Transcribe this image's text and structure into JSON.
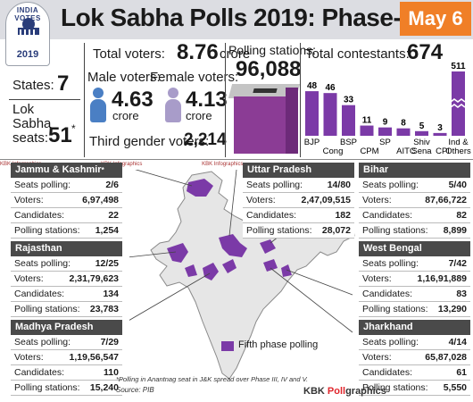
{
  "logo": {
    "top_text": "INDIA VOTES",
    "year": "2019"
  },
  "header": {
    "title": "Lok Sabha Polls 2019: Phase-V",
    "date": "May 6"
  },
  "stats": {
    "states_label": "States:",
    "states_value": "7",
    "seats_label_1": "Lok",
    "seats_label_2": "Sabha",
    "seats_label_3": "seats:",
    "seats_value": "51",
    "seats_note": "*",
    "total_voters_label": "Total voters:",
    "total_voters_value": "8.76",
    "total_voters_unit": "crore",
    "male_label": "Male voters:",
    "male_value": "4.63",
    "male_unit": "crore",
    "female_label": "Female voters:",
    "female_value": "4.13",
    "female_unit": "crore",
    "third_gender_label": "Third gender voters:",
    "third_gender_value": "2,214",
    "polling_stations_label": "Polling stations:",
    "polling_stations_value": "96,088",
    "contestants_label": "Total contestants:",
    "contestants_value": "674"
  },
  "colors": {
    "accent": "#7b3aa7",
    "badge": "#f07f27",
    "male": "#4a7fc4",
    "female": "#a89cc9"
  },
  "chart_data": {
    "type": "bar",
    "title": "Total contestants: 674",
    "categories": [
      "BJP",
      "Cong",
      "BSP",
      "CPM",
      "SP",
      "AITC",
      "Shiv Sena",
      "CPI",
      "Ind & Others"
    ],
    "values": [
      48,
      46,
      33,
      11,
      9,
      8,
      5,
      3,
      511
    ],
    "value_labels": [
      "48",
      "46",
      "33",
      "11",
      "9",
      "8",
      "5",
      "3",
      "511"
    ],
    "label_lines": [
      [
        "BJP"
      ],
      [
        "Cong"
      ],
      [
        "BSP"
      ],
      [
        "CPM"
      ],
      [
        "SP"
      ],
      [
        "AITC"
      ],
      [
        "Shiv",
        "Sena"
      ],
      [
        "CPI"
      ],
      [
        "Ind &",
        "Others"
      ]
    ],
    "axis_break_on_last": true
  },
  "watermark": "KBK Infographics",
  "states": [
    {
      "name": "Jammu & Kashmir",
      "note": "*",
      "seats": "2/6",
      "voters": "6,97,498",
      "candidates": "22",
      "stations": "1,254"
    },
    {
      "name": "Uttar Pradesh",
      "note": "",
      "seats": "14/80",
      "voters": "2,47,09,515",
      "candidates": "182",
      "stations": "28,072"
    },
    {
      "name": "Bihar",
      "note": "",
      "seats": "5/40",
      "voters": "87,66,722",
      "candidates": "82",
      "stations": "8,899"
    },
    {
      "name": "Rajasthan",
      "note": "",
      "seats": "12/25",
      "voters": "2,31,79,623",
      "candidates": "134",
      "stations": "23,783"
    },
    {
      "name": "West Bengal",
      "note": "",
      "seats": "7/42",
      "voters": "1,16,91,889",
      "candidates": "83",
      "stations": "13,290"
    },
    {
      "name": "Madhya Pradesh",
      "note": "",
      "seats": "7/29",
      "voters": "1,19,56,547",
      "candidates": "110",
      "stations": "15,240"
    },
    {
      "name": "Jharkhand",
      "note": "",
      "seats": "4/14",
      "voters": "65,87,028",
      "candidates": "61",
      "stations": "5,550"
    }
  ],
  "row_labels": {
    "seats": "Seats polling:",
    "voters": "Voters:",
    "candidates": "Candidates:",
    "stations": "Polling stations:"
  },
  "legend": {
    "label": "Fifth phase polling"
  },
  "footnote": "*Polling in Anantnag seat in J&K spread over Phase III, IV and V.",
  "source": "Source: PIB",
  "brand": {
    "part1": "KBK ",
    "part2": "Poll",
    "part3": "graphics"
  }
}
